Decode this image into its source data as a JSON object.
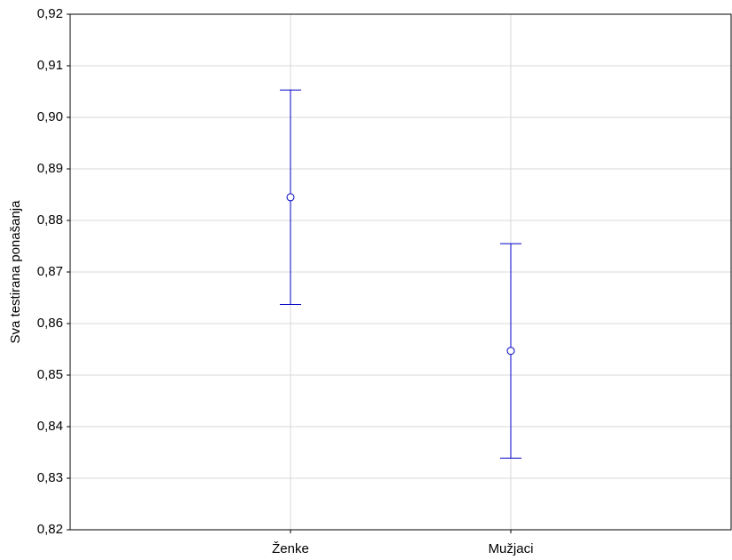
{
  "chart_data": {
    "type": "errorbar",
    "y_label": "Sva testirana ponašanja",
    "categories": [
      "Ženke",
      "Mužjaci"
    ],
    "values": [
      0.8845,
      0.8547
    ],
    "errors": [
      0.0208,
      0.0208
    ],
    "color": "#0000c8",
    "ylim": [
      0.82,
      0.92
    ],
    "yticks": [
      {
        "value": 0.82,
        "label": "0,82"
      },
      {
        "value": 0.83,
        "label": "0,83"
      },
      {
        "value": 0.84,
        "label": "0,84"
      },
      {
        "value": 0.85,
        "label": "0,85"
      },
      {
        "value": 0.86,
        "label": "0,86"
      },
      {
        "value": 0.87,
        "label": "0,87"
      },
      {
        "value": 0.88,
        "label": "0,88"
      },
      {
        "value": 0.89,
        "label": "0,89"
      },
      {
        "value": 0.9,
        "label": "0,90"
      },
      {
        "value": 0.91,
        "label": "0,91"
      },
      {
        "value": 0.92,
        "label": "0,92"
      }
    ],
    "grid": true
  }
}
